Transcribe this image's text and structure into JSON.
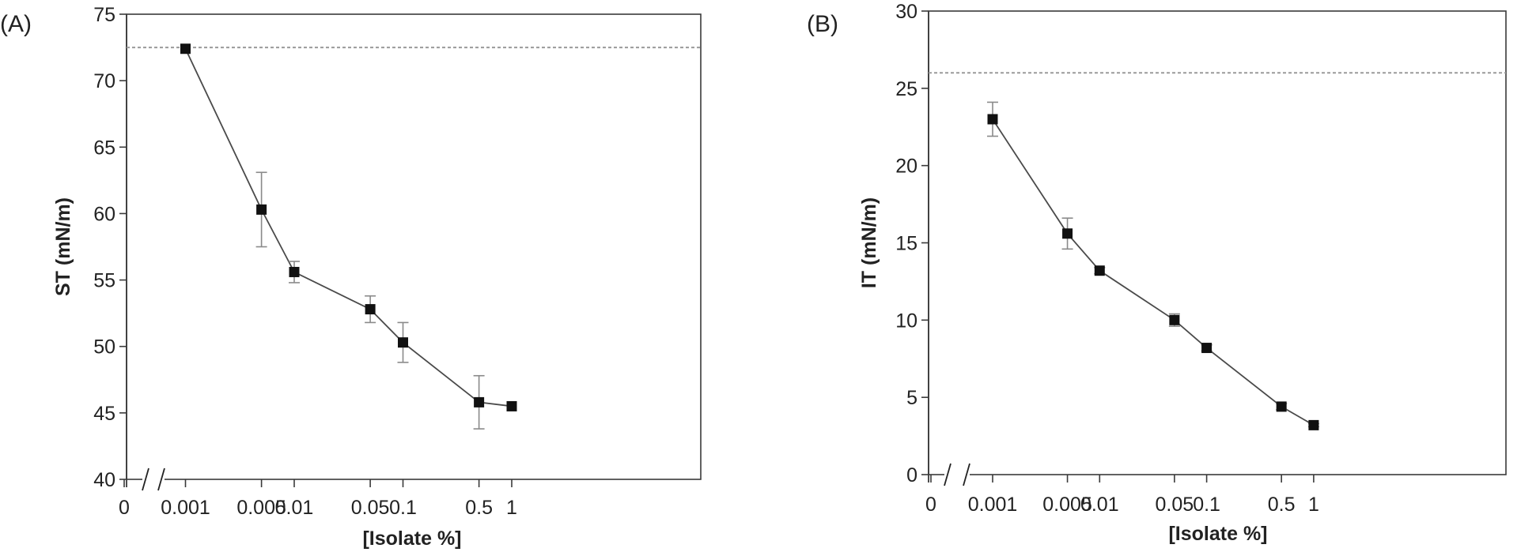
{
  "chart_data": [
    {
      "type": "line",
      "panel_label": "(A)",
      "xlabel": "[Isolate %]",
      "ylabel": "ST (mN/m)",
      "ylim": [
        40,
        75
      ],
      "yticks": [
        40,
        45,
        50,
        55,
        60,
        65,
        70,
        75
      ],
      "xticks": [
        "0",
        "0.001",
        "0.005",
        "0.01",
        "0.05",
        "0.1",
        "0.5",
        "1"
      ],
      "x_scale": "log (broken axis after 0)",
      "reference_line": 72.5,
      "series": [
        {
          "name": "ST",
          "x": [
            0.001,
            0.005,
            0.01,
            0.05,
            0.1,
            0.5,
            1
          ],
          "y": [
            72.4,
            60.3,
            55.6,
            52.8,
            50.3,
            45.8,
            45.5
          ],
          "error": [
            0,
            2.8,
            0.8,
            1.0,
            1.5,
            2.0,
            0
          ]
        }
      ]
    },
    {
      "type": "line",
      "panel_label": "(B)",
      "xlabel": "[Isolate %]",
      "ylabel": "IT (mN/m)",
      "ylim": [
        0,
        30
      ],
      "yticks": [
        0,
        5,
        10,
        15,
        20,
        25,
        30
      ],
      "xticks": [
        "0",
        "0.001",
        "0.005",
        "0.01",
        "0.05",
        "0.1",
        "0.5",
        "1"
      ],
      "x_scale": "log (broken axis after 0)",
      "reference_line": 26,
      "series": [
        {
          "name": "IT",
          "x": [
            0.001,
            0.005,
            0.01,
            0.05,
            0.1,
            0.5,
            1
          ],
          "y": [
            23.0,
            15.6,
            13.2,
            10.0,
            8.2,
            4.4,
            3.2
          ],
          "error": [
            1.1,
            1.0,
            0.2,
            0.4,
            0.2,
            0.2,
            0.1
          ]
        }
      ]
    }
  ]
}
